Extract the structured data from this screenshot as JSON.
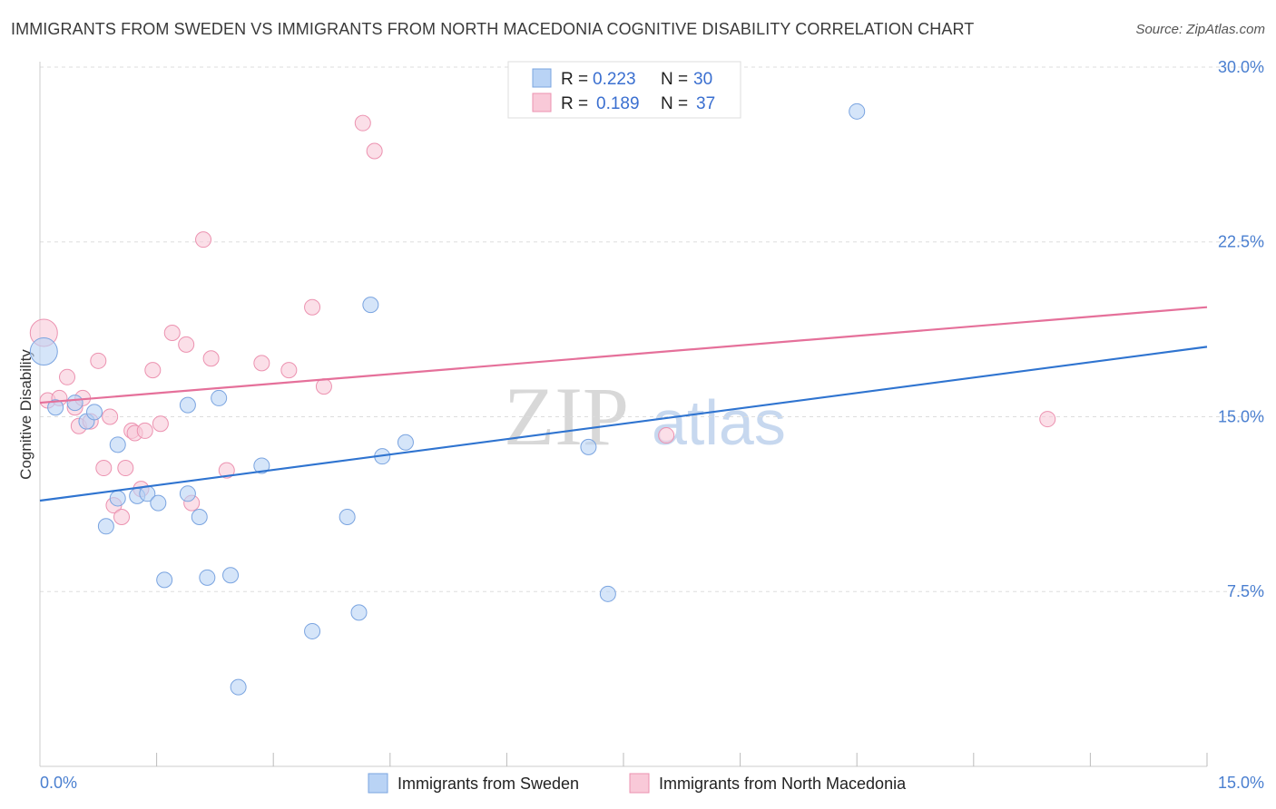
{
  "header": {
    "title": "IMMIGRANTS FROM SWEDEN VS IMMIGRANTS FROM NORTH MACEDONIA COGNITIVE DISABILITY CORRELATION CHART",
    "source": "Source: ZipAtlas.com"
  },
  "watermark": {
    "zip": "ZIP",
    "atlas": "atlas"
  },
  "colors": {
    "sweden_fill": "#b9d3f5",
    "sweden_stroke": "#7aa4e0",
    "sweden_line": "#2f74d0",
    "macedonia_fill": "#f9c9d8",
    "macedonia_stroke": "#ec92b0",
    "macedonia_line": "#e5709a",
    "grid": "#dddddd",
    "tick_text": "#4a7fd0"
  },
  "chart_data": {
    "type": "scatter",
    "title": "IMMIGRANTS FROM SWEDEN VS IMMIGRANTS FROM NORTH MACEDONIA COGNITIVE DISABILITY CORRELATION CHART",
    "xlabel": "",
    "ylabel": "Cognitive Disability",
    "xlim": [
      0,
      15
    ],
    "ylim": [
      0,
      30.7
    ],
    "x_tick_labels": [
      "0.0%",
      "15.0%"
    ],
    "y_ticks": [
      7.5,
      15.0,
      22.5,
      30.0
    ],
    "y_tick_labels": [
      "7.5%",
      "15.0%",
      "22.5%",
      "30.0%"
    ],
    "legend": {
      "position": "top-center",
      "entries": [
        {
          "r_label": "R =",
          "r_value": "0.223",
          "n_label": "N =",
          "n_value": "30"
        },
        {
          "r_label": "R =",
          "r_value": "0.189",
          "n_label": "N =",
          "n_value": "37"
        }
      ]
    },
    "series": [
      {
        "name": "Immigrants from Sweden",
        "trend": {
          "x": [
            0,
            15
          ],
          "y": [
            11.4,
            18.0
          ]
        },
        "points": [
          {
            "x": 0.05,
            "y": 17.8,
            "big": true
          },
          {
            "x": 0.2,
            "y": 15.4
          },
          {
            "x": 0.45,
            "y": 15.6
          },
          {
            "x": 0.6,
            "y": 14.8
          },
          {
            "x": 0.7,
            "y": 15.2
          },
          {
            "x": 0.85,
            "y": 10.3
          },
          {
            "x": 1.0,
            "y": 13.8
          },
          {
            "x": 1.0,
            "y": 11.5
          },
          {
            "x": 1.25,
            "y": 11.6
          },
          {
            "x": 1.38,
            "y": 11.7
          },
          {
            "x": 1.52,
            "y": 11.3
          },
          {
            "x": 1.6,
            "y": 8.0
          },
          {
            "x": 1.9,
            "y": 11.7
          },
          {
            "x": 1.9,
            "y": 15.5
          },
          {
            "x": 2.05,
            "y": 10.7
          },
          {
            "x": 2.15,
            "y": 8.1
          },
          {
            "x": 2.3,
            "y": 15.8
          },
          {
            "x": 2.45,
            "y": 8.2
          },
          {
            "x": 2.55,
            "y": 3.4
          },
          {
            "x": 2.85,
            "y": 12.9
          },
          {
            "x": 3.5,
            "y": 5.8
          },
          {
            "x": 3.95,
            "y": 10.7
          },
          {
            "x": 4.1,
            "y": 6.6
          },
          {
            "x": 4.25,
            "y": 19.8
          },
          {
            "x": 4.4,
            "y": 13.3
          },
          {
            "x": 4.7,
            "y": 13.9
          },
          {
            "x": 7.05,
            "y": 13.7
          },
          {
            "x": 7.3,
            "y": 7.4
          },
          {
            "x": 10.5,
            "y": 28.1
          }
        ]
      },
      {
        "name": "Immigrants from North Macedonia",
        "trend": {
          "x": [
            0,
            15
          ],
          "y": [
            15.6,
            19.7
          ]
        },
        "points": [
          {
            "x": 0.05,
            "y": 18.6,
            "big": true
          },
          {
            "x": 0.1,
            "y": 15.7
          },
          {
            "x": 0.25,
            "y": 15.8
          },
          {
            "x": 0.35,
            "y": 16.7
          },
          {
            "x": 0.45,
            "y": 15.4
          },
          {
            "x": 0.5,
            "y": 14.6
          },
          {
            "x": 0.55,
            "y": 15.8
          },
          {
            "x": 0.65,
            "y": 14.8
          },
          {
            "x": 0.75,
            "y": 17.4
          },
          {
            "x": 0.82,
            "y": 12.8
          },
          {
            "x": 0.9,
            "y": 15.0
          },
          {
            "x": 0.95,
            "y": 11.2
          },
          {
            "x": 1.05,
            "y": 10.7
          },
          {
            "x": 1.1,
            "y": 12.8
          },
          {
            "x": 1.18,
            "y": 14.4
          },
          {
            "x": 1.22,
            "y": 14.3
          },
          {
            "x": 1.3,
            "y": 11.9
          },
          {
            "x": 1.35,
            "y": 14.4
          },
          {
            "x": 1.45,
            "y": 17.0
          },
          {
            "x": 1.55,
            "y": 14.7
          },
          {
            "x": 1.7,
            "y": 18.6
          },
          {
            "x": 1.88,
            "y": 18.1
          },
          {
            "x": 1.95,
            "y": 11.3
          },
          {
            "x": 2.1,
            "y": 22.6
          },
          {
            "x": 2.2,
            "y": 17.5
          },
          {
            "x": 2.4,
            "y": 12.7
          },
          {
            "x": 2.85,
            "y": 17.3
          },
          {
            "x": 3.2,
            "y": 17.0
          },
          {
            "x": 3.5,
            "y": 19.7
          },
          {
            "x": 3.65,
            "y": 16.3
          },
          {
            "x": 4.15,
            "y": 27.6
          },
          {
            "x": 4.3,
            "y": 26.4
          },
          {
            "x": 8.05,
            "y": 14.2
          },
          {
            "x": 12.95,
            "y": 14.9
          }
        ]
      }
    ]
  }
}
